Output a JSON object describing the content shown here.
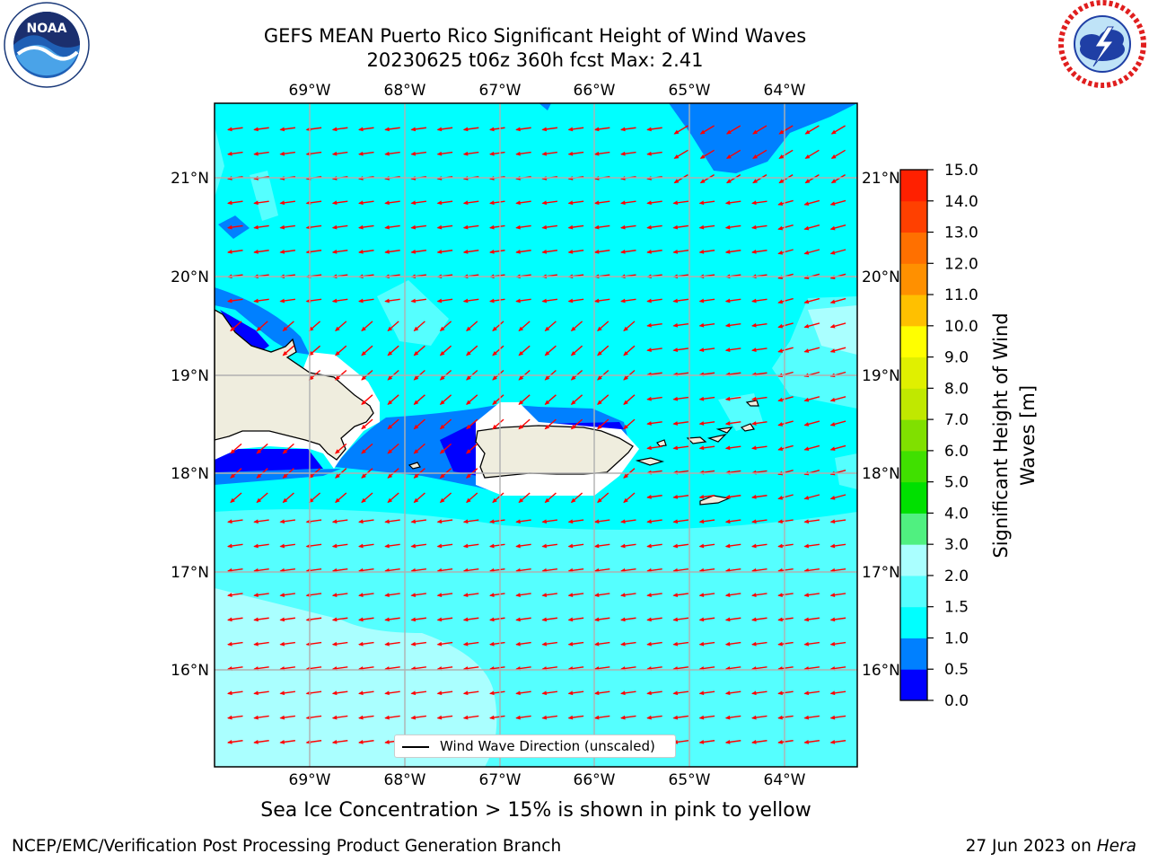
{
  "header": {
    "title_line1": "GEFS MEAN Puerto Rico Significant Height of Wind Waves",
    "title_line2": "20230625 t06z 360h fcst   Max: 2.41"
  },
  "logos": {
    "noaa_text": "NOAA",
    "noaa_ring_text": "NATIONAL OCEANIC AND ATMOSPHERIC ADMINISTRATION · U.S. DEPARTMENT OF COMMERCE",
    "nws_ring_text": "NATIONAL WEATHER SERVICE"
  },
  "map": {
    "lon_labels": [
      "69°W",
      "68°W",
      "67°W",
      "66°W",
      "65°W",
      "64°W"
    ],
    "lat_labels": [
      "21°N",
      "20°N",
      "19°N",
      "18°N",
      "17°N",
      "16°N"
    ],
    "legend_label": "Wind Wave Direction (unscaled)",
    "arrow_color": "#ff0000",
    "colors": {
      "ocean_1_0_1_5": "#00ffff",
      "ocean_1_5_2_0": "#55ffff",
      "ocean_2_0_3_0": "#aaffff",
      "ocean_0_5_1_0": "#0080ff",
      "ocean_0_0_0_5": "#0000ff",
      "land": "#efedde"
    }
  },
  "colorbar": {
    "label_line1": "Significant Height of Wind",
    "label_line2": "Waves [m]",
    "ticks": [
      "0.0",
      "0.5",
      "1.0",
      "1.5",
      "2.0",
      "3.0",
      "4.0",
      "5.0",
      "6.0",
      "7.0",
      "8.0",
      "9.0",
      "10.0",
      "11.0",
      "12.0",
      "13.0",
      "14.0",
      "15.0"
    ],
    "colors": [
      "#0000ff",
      "#0080ff",
      "#00ffff",
      "#55ffff",
      "#aaffff",
      "#50f080",
      "#00e000",
      "#40e000",
      "#80e000",
      "#c0e800",
      "#e0f000",
      "#ffff00",
      "#ffc000",
      "#ff9000",
      "#ff7000",
      "#ff4000",
      "#ff2000"
    ]
  },
  "footer": {
    "sea_ice_note": "Sea Ice Concentration > 15% is shown in pink to yellow",
    "credit_left": "NCEP/EMC/Verification Post Processing Product Generation Branch",
    "credit_right_prefix": "27 Jun 2023 on ",
    "credit_right_host": "Hera"
  }
}
